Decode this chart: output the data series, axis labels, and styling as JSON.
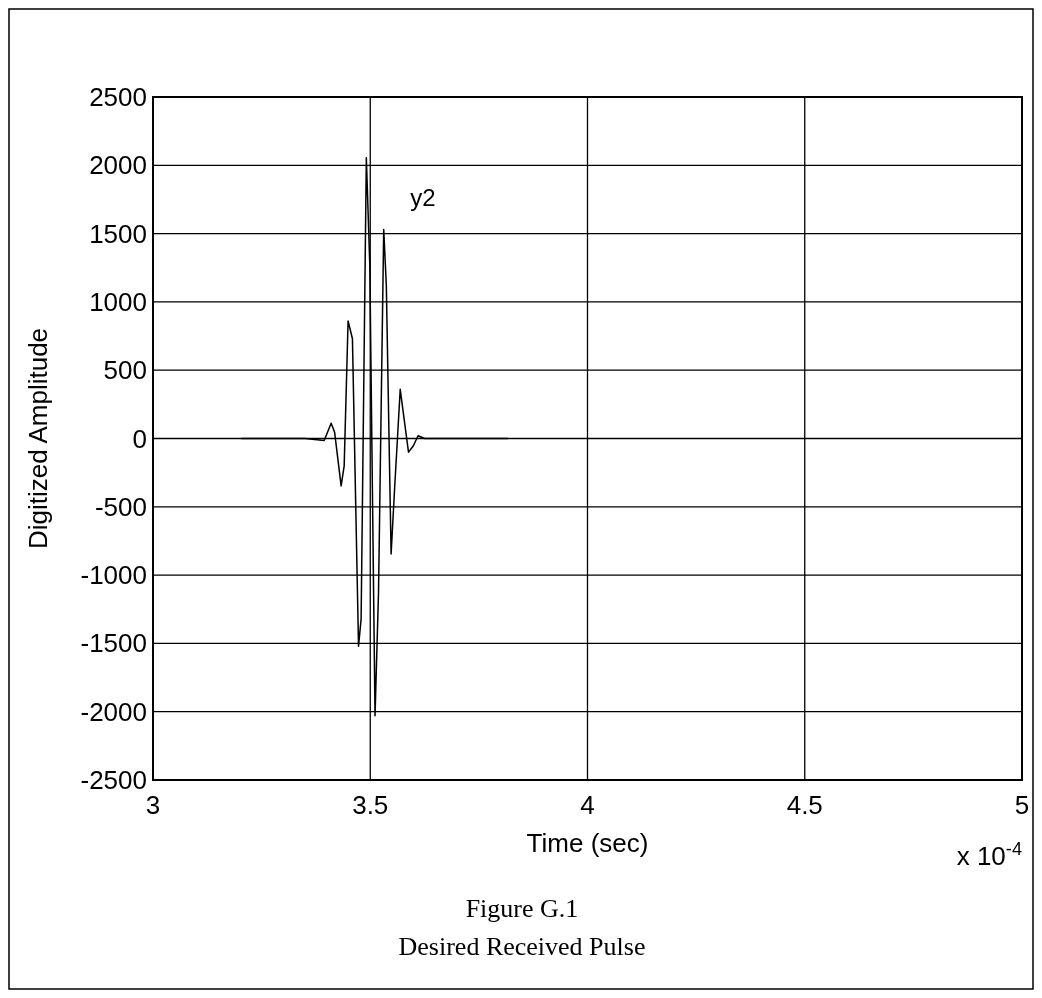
{
  "chart_data": {
    "type": "line",
    "xlabel": "Time (sec)",
    "ylabel": "Digitized Amplitude",
    "annotations": [
      "x 10$^{-4}$",
      "Figure G.1",
      "Desired Received Pulse"
    ],
    "xlim": [
      3,
      5
    ],
    "xticks": [
      3,
      3.5,
      4,
      4.5,
      5
    ],
    "ylim": [
      -2500,
      2500
    ],
    "yticks": [
      -2500,
      -2000,
      -1500,
      -1000,
      -500,
      0,
      500,
      1000,
      1500,
      2000,
      2500
    ],
    "grid": true,
    "marker": "none",
    "line_style": "solid",
    "series": [
      {
        "name": "y2",
        "color": "#000000",
        "x": [
          3.203,
          3.25,
          3.3,
          3.35,
          3.394,
          3.41,
          3.418,
          3.433,
          3.44,
          3.449,
          3.459,
          3.473,
          3.479,
          3.491,
          3.499,
          3.511,
          3.519,
          3.531,
          3.537,
          3.548,
          3.556,
          3.569,
          3.577,
          3.588,
          3.599,
          3.61,
          3.625,
          3.7,
          3.75,
          3.817
        ],
        "values": [
          0,
          0,
          0,
          0,
          -15,
          112,
          45,
          -347,
          -200,
          860,
          730,
          -1520,
          -1320,
          2055,
          1265,
          -2030,
          -1130,
          1530,
          1120,
          -845,
          -370,
          360,
          165,
          -100,
          -55,
          20,
          0,
          0,
          0,
          0
        ]
      }
    ]
  }
}
